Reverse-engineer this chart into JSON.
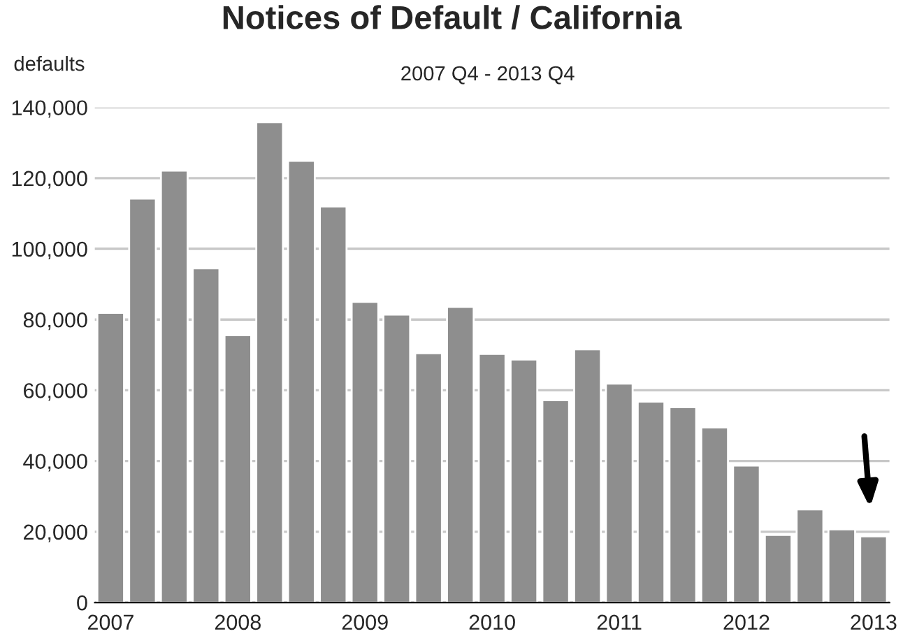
{
  "chart_data": {
    "type": "bar",
    "title": "Notices of Default / California",
    "subtitle": "2007 Q4 - 2013 Q4",
    "ylabel": "defaults",
    "categories": [
      "2007",
      null,
      null,
      null,
      "2008",
      null,
      null,
      null,
      "2009",
      null,
      null,
      null,
      "2010",
      null,
      null,
      null,
      "2011",
      null,
      null,
      null,
      "2012",
      null,
      null,
      null,
      "2013"
    ],
    "values": [
      81900,
      114200,
      122100,
      94500,
      75600,
      135800,
      124900,
      112000,
      85000,
      81400,
      70500,
      83600,
      70300,
      68700,
      57200,
      71600,
      61900,
      56800,
      55200,
      49500,
      38700,
      19100,
      26300,
      20700,
      18700
    ],
    "color": "#8e8e8e",
    "ylim": [
      0,
      140000
    ],
    "yticks": [
      {
        "value": 0,
        "label": "0"
      },
      {
        "value": 20000,
        "label": "20,000"
      },
      {
        "value": 40000,
        "label": "40,000"
      },
      {
        "value": 60000,
        "label": "60,000"
      },
      {
        "value": 80000,
        "label": "80,000"
      },
      {
        "value": 100000,
        "label": "100,000"
      },
      {
        "value": 120000,
        "label": "120,000"
      },
      {
        "value": 140000,
        "label": "140,000"
      }
    ],
    "grid": "y"
  }
}
